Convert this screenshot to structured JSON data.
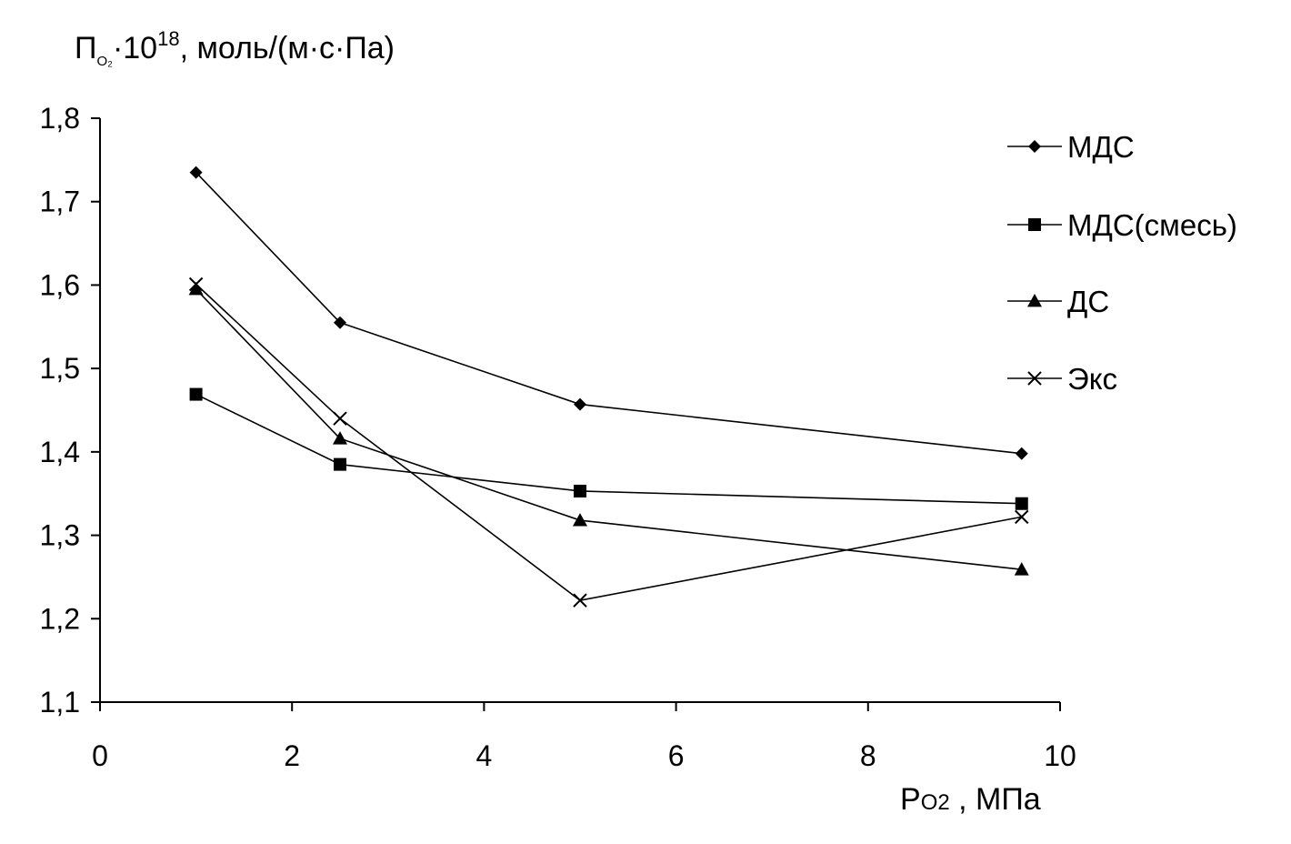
{
  "chart_data": {
    "type": "line",
    "ylabel": {
      "main": "П",
      "sub": "O₂",
      "mult": "·10",
      "exp": "18",
      "unit": ", моль/(м·с·Па)"
    },
    "xlabel": {
      "main": "P",
      "sub": "O2",
      "unit": " , МПа"
    },
    "xlim": [
      0,
      10
    ],
    "ylim": [
      1.1,
      1.8
    ],
    "x_ticks": [
      0,
      2,
      4,
      6,
      8,
      10
    ],
    "x_tick_labels": [
      "0",
      "2",
      "4",
      "6",
      "8",
      "10"
    ],
    "y_ticks": [
      1.1,
      1.2,
      1.3,
      1.4,
      1.5,
      1.6,
      1.7,
      1.8
    ],
    "y_tick_labels": [
      "1,1",
      "1,2",
      "1,3",
      "1,4",
      "1,5",
      "1,6",
      "1,7",
      "1,8"
    ],
    "grid": false,
    "legend_position": "top-right",
    "series": [
      {
        "name": "МДС",
        "marker": "diamond",
        "x": [
          1,
          2.5,
          5,
          9.6
        ],
        "y": [
          1.735,
          1.555,
          1.457,
          1.398
        ]
      },
      {
        "name": "МДС(смесь)",
        "marker": "square",
        "x": [
          1,
          2.5,
          5,
          9.6
        ],
        "y": [
          1.469,
          1.385,
          1.353,
          1.338
        ]
      },
      {
        "name": "ДС",
        "marker": "triangle",
        "x": [
          1,
          2.5,
          5,
          9.6
        ],
        "y": [
          1.595,
          1.416,
          1.318,
          1.259
        ]
      },
      {
        "name": "Экс",
        "marker": "cross",
        "x": [
          1,
          2.5,
          5,
          9.6
        ],
        "y": [
          1.601,
          1.44,
          1.222,
          1.322
        ]
      }
    ]
  }
}
